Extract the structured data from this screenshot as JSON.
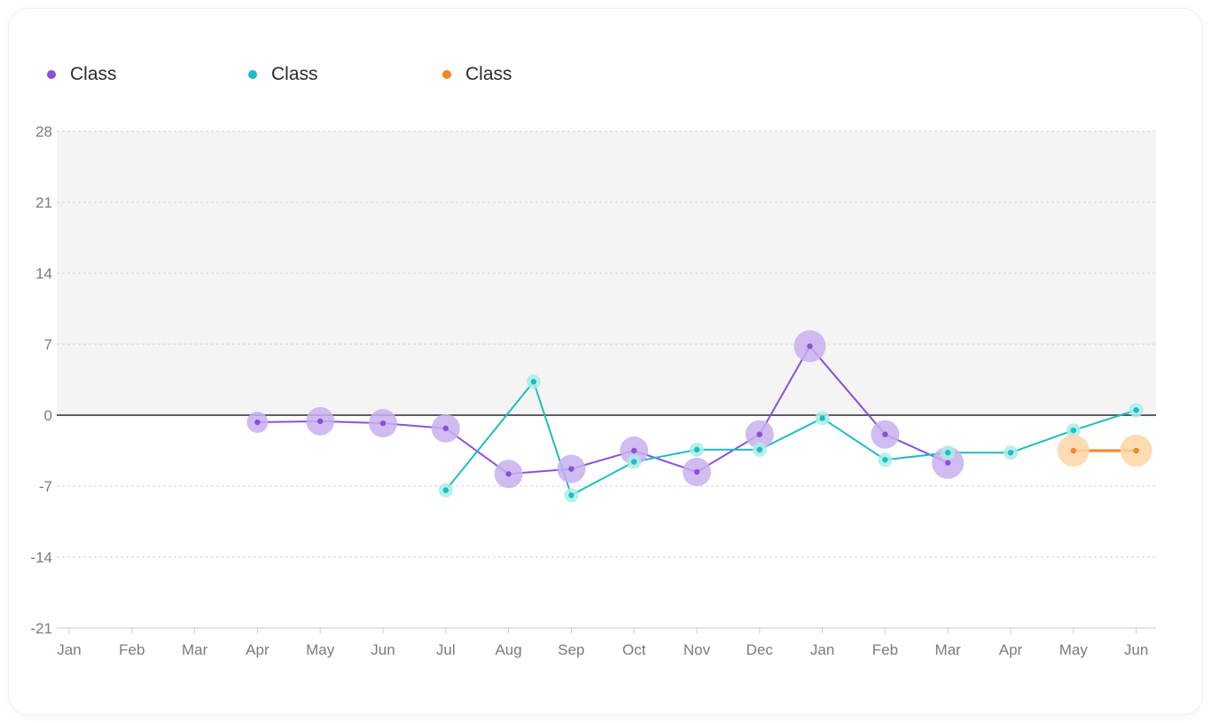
{
  "chart_data": {
    "type": "line",
    "title": "",
    "xlabel": "",
    "ylabel": "",
    "categories": [
      "Jan",
      "Feb",
      "Mar",
      "Apr",
      "May",
      "Jun",
      "Jul",
      "Aug",
      "Sep",
      "Oct",
      "Nov",
      "Dec",
      "Jan",
      "Feb",
      "Mar",
      "Apr",
      "May",
      "Jun"
    ],
    "yticks": [
      28,
      21,
      14,
      7,
      0,
      -7,
      -14,
      -21
    ],
    "ylim": [
      -21,
      28
    ],
    "grid": true,
    "legend_position": "top-left",
    "shaded_band": [
      0,
      28
    ],
    "series": [
      {
        "name": "Class",
        "color": "#8c4fd8",
        "halo": "#c8b0ef",
        "points": [
          {
            "x": 3,
            "y": -0.7,
            "size": 12
          },
          {
            "x": 4,
            "y": -0.6,
            "size": 16
          },
          {
            "x": 5,
            "y": -0.8,
            "size": 16
          },
          {
            "x": 6,
            "y": -1.3,
            "size": 16
          },
          {
            "x": 7,
            "y": -5.8,
            "size": 16
          },
          {
            "x": 8,
            "y": -5.3,
            "size": 16
          },
          {
            "x": 9,
            "y": -3.5,
            "size": 16
          },
          {
            "x": 10,
            "y": -5.6,
            "size": 16
          },
          {
            "x": 11,
            "y": -1.9,
            "size": 16
          },
          {
            "x": 11.8,
            "y": 6.8,
            "size": 18
          },
          {
            "x": 13,
            "y": -1.9,
            "size": 16
          },
          {
            "x": 14,
            "y": -4.7,
            "size": 18
          }
        ]
      },
      {
        "name": "Class",
        "color": "#1fbcc1",
        "halo": "#a8ede8",
        "points": [
          {
            "x": 6,
            "y": -7.4,
            "size": 8
          },
          {
            "x": 7.4,
            "y": 3.3,
            "size": 8
          },
          {
            "x": 8,
            "y": -7.9,
            "size": 8
          },
          {
            "x": 9,
            "y": -4.6,
            "size": 8
          },
          {
            "x": 10,
            "y": -3.4,
            "size": 8
          },
          {
            "x": 11,
            "y": -3.4,
            "size": 8
          },
          {
            "x": 12,
            "y": -0.3,
            "size": 8
          },
          {
            "x": 13,
            "y": -4.4,
            "size": 8
          },
          {
            "x": 14,
            "y": -3.7,
            "size": 8
          },
          {
            "x": 15,
            "y": -3.7,
            "size": 8
          },
          {
            "x": 16,
            "y": -1.5,
            "size": 8
          },
          {
            "x": 17,
            "y": 0.5,
            "size": 8
          }
        ]
      },
      {
        "name": "Class",
        "color": "#f5851f",
        "halo": "#fdd6a6",
        "points": [
          {
            "x": 16,
            "y": -3.5,
            "size": 18
          },
          {
            "x": 17,
            "y": -3.5,
            "size": 18
          }
        ]
      }
    ]
  }
}
